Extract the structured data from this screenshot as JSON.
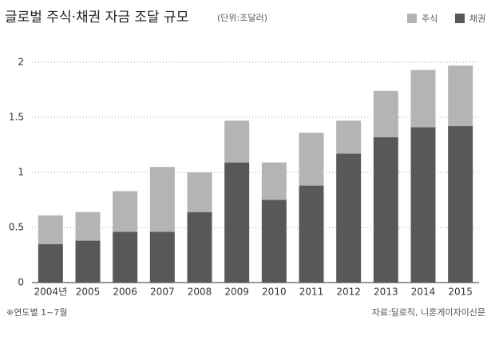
{
  "chart_data": {
    "type": "bar",
    "stacked": true,
    "title": "글로벌 주식·채권 자금 조달 규모",
    "unit": "(단위:조달러)",
    "note": "※연도별 1~7월",
    "source": "자료:딜로직, 니혼게이자이신문",
    "categories": [
      "2004년",
      "2005",
      "2006",
      "2007",
      "2008",
      "2009",
      "2010",
      "2011",
      "2012",
      "2013",
      "2014",
      "2015"
    ],
    "series": [
      {
        "name": "주식",
        "color": "#b4b4b4",
        "values": [
          0.26,
          0.26,
          0.37,
          0.59,
          0.36,
          0.38,
          0.34,
          0.48,
          0.3,
          0.42,
          0.52,
          0.55
        ]
      },
      {
        "name": "채권",
        "color": "#585858",
        "values": [
          0.35,
          0.38,
          0.46,
          0.46,
          0.64,
          1.09,
          0.75,
          0.88,
          1.17,
          1.32,
          1.41,
          1.42
        ]
      }
    ],
    "ylim": [
      0,
      2
    ],
    "yticks": [
      0,
      0.5,
      1,
      1.5,
      2
    ],
    "grid": true
  }
}
